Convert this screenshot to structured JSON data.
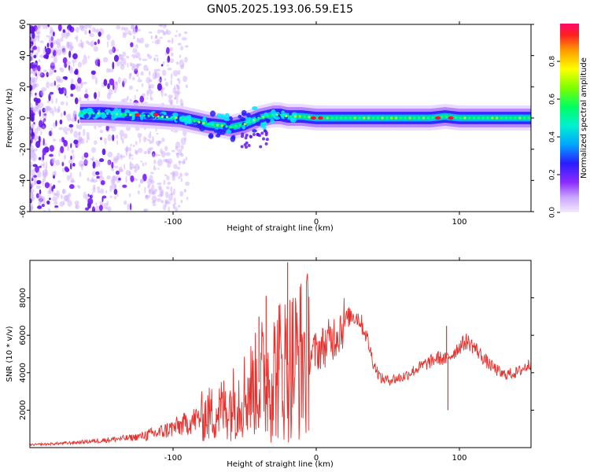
{
  "title": "GN05.2025.193.06.59.E15",
  "colors": {
    "snr_line": "#e8302c",
    "trace_main": "#00e08a",
    "trace_edge": "#2020ff",
    "halo": "#9b30ff",
    "peak": "#ff1030",
    "axis": "#000000"
  },
  "chart_data": [
    {
      "type": "heatmap",
      "xlabel": "Height of straight line (km)",
      "ylabel": "Frequency (Hz)",
      "xlim": [
        -200,
        150
      ],
      "ylim": [
        -60,
        60
      ],
      "xticks": [
        -100,
        0,
        100
      ],
      "yticks": [
        -60,
        -40,
        -20,
        0,
        20,
        40,
        60
      ],
      "colorbar": {
        "label": "Normalized spectral amplitude",
        "range": [
          0,
          1
        ],
        "ticks": [
          0.0,
          0.2,
          0.4,
          0.6,
          0.8
        ]
      },
      "ridge": {
        "x": [
          -165,
          -150,
          -130,
          -110,
          -95,
          -85,
          -75,
          -65,
          -60,
          -55,
          -50,
          -45,
          -40,
          -35,
          -30,
          -25,
          -20,
          -10,
          0,
          20,
          40,
          60,
          80,
          90,
          100,
          120,
          150
        ],
        "frequency": [
          3,
          3,
          2,
          1,
          0,
          -2,
          -4,
          -5,
          -6,
          -5,
          -4,
          -2,
          0,
          1,
          2,
          2,
          1,
          1,
          0,
          0,
          0,
          0,
          0,
          1,
          0,
          0,
          0
        ]
      },
      "peaks": [
        {
          "x": -2,
          "frequency": 0
        },
        {
          "x": 3,
          "frequency": 0
        },
        {
          "x": -112,
          "frequency": 2
        },
        {
          "x": -125,
          "frequency": 2
        },
        {
          "x": 85,
          "frequency": 0
        },
        {
          "x": 94,
          "frequency": 0
        }
      ]
    },
    {
      "type": "line",
      "xlabel": "Height of straight line (km)",
      "ylabel": "SNR (10 * v/v)",
      "xlim": [
        -200,
        150
      ],
      "ylim": [
        0,
        10000
      ],
      "xticks": [
        -100,
        0,
        100
      ],
      "yticks": [
        2000,
        4000,
        6000,
        8000
      ],
      "series": [
        {
          "x": [
            -200,
            -190,
            -180,
            -170,
            -160,
            -150,
            -140,
            -130,
            -120,
            -110,
            -100,
            -90,
            -80,
            -70,
            -60,
            -55,
            -50,
            -45,
            -40,
            -35,
            -30,
            -25,
            -20,
            -15,
            -10,
            -5,
            0,
            5,
            10,
            15,
            20,
            25,
            30,
            35,
            40,
            45,
            50,
            60,
            70,
            80,
            85,
            90,
            95,
            100,
            105,
            110,
            120,
            130,
            140,
            150
          ],
          "values": [
            150,
            180,
            220,
            260,
            320,
            380,
            460,
            520,
            640,
            800,
            1050,
            1300,
            1650,
            1900,
            2300,
            2600,
            2900,
            3200,
            3500,
            3800,
            4000,
            4200,
            4400,
            4600,
            4800,
            4950,
            5150,
            5400,
            5750,
            6200,
            6800,
            7100,
            6900,
            6000,
            4500,
            3700,
            3600,
            3750,
            4200,
            4600,
            4800,
            4700,
            5000,
            5400,
            5700,
            5400,
            4500,
            3900,
            4000,
            4500
          ]
        }
      ],
      "spikes": [
        {
          "x": -20,
          "value": 9900
        },
        {
          "x": -35,
          "value": 8100
        },
        {
          "x": -40,
          "value": 7000
        },
        {
          "x": -26,
          "value": 7600
        },
        {
          "x": 92,
          "value": 2000
        },
        {
          "x": 91,
          "value": 6500
        }
      ]
    }
  ]
}
